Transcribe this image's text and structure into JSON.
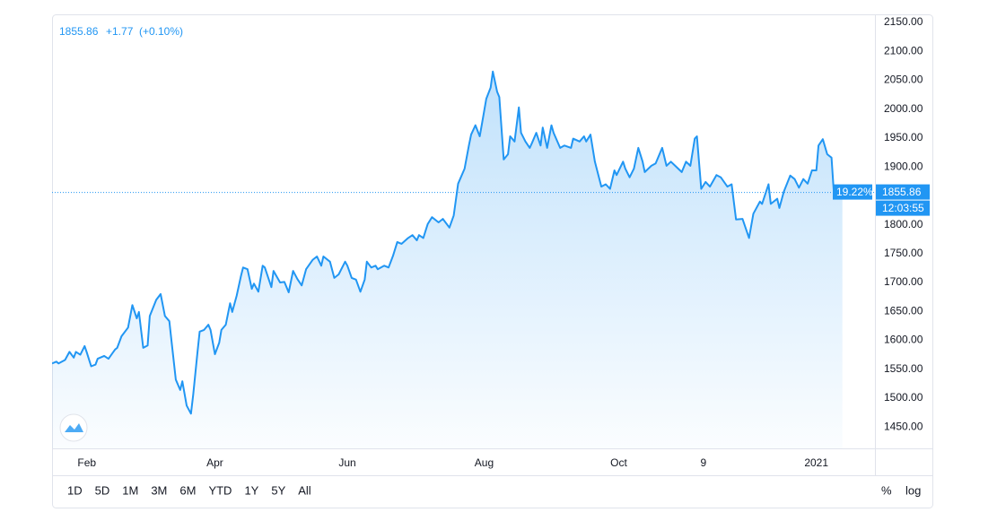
{
  "chart_data": {
    "type": "area",
    "header": {
      "price": "1855.86",
      "change": "+1.77",
      "change_pct": "(+0.10%)"
    },
    "price_label": {
      "percent": "19.22%",
      "countdown": "12:03:55"
    },
    "color": "#2196f3",
    "x": [
      15,
      17,
      18,
      21,
      23,
      25,
      26,
      28,
      30,
      31,
      33,
      35,
      36,
      39,
      41,
      44,
      45,
      47,
      50,
      52,
      54,
      55,
      57,
      59,
      60,
      63,
      65,
      67,
      69,
      70,
      72,
      74,
      75,
      77,
      79,
      80,
      82,
      83,
      85,
      87,
      88,
      90,
      92,
      93,
      95,
      97,
      98,
      100,
      102,
      103,
      105,
      107,
      108,
      110,
      112,
      113,
      116,
      117,
      120,
      122,
      124,
      126,
      128,
      130,
      132,
      135,
      137,
      139,
      140,
      143,
      145,
      147,
      150,
      151,
      153,
      155,
      157,
      159,
      160,
      162,
      164,
      165,
      168,
      170,
      172,
      174,
      176,
      179,
      181,
      183,
      184,
      186,
      188,
      190,
      193,
      195,
      198,
      200,
      202,
      205,
      207,
      208,
      210,
      212,
      213,
      215,
      217,
      218,
      220,
      221,
      223,
      225,
      226,
      228,
      230,
      231,
      233,
      235,
      236,
      238,
      240,
      241,
      243,
      245,
      246,
      249,
      251,
      254,
      255,
      258,
      260,
      261,
      263,
      265,
      268,
      270,
      272,
      274,
      275,
      278,
      279,
      281,
      283,
      285,
      287,
      288,
      291,
      293,
      296,
      298,
      300,
      302,
      305,
      307,
      309,
      311,
      312,
      314,
      316,
      318,
      321,
      323,
      326,
      328,
      330,
      333,
      336,
      338,
      341,
      342,
      345,
      346,
      349,
      350,
      352,
      355,
      357,
      359,
      361,
      363,
      365,
      367,
      368,
      370,
      372,
      374,
      375,
      377,
      379
    ],
    "values": [
      1560,
      1563,
      1560,
      1566,
      1580,
      1570,
      1580,
      1575,
      1590,
      1579,
      1555,
      1558,
      1568,
      1573,
      1568,
      1584,
      1587,
      1607,
      1622,
      1661,
      1638,
      1649,
      1587,
      1591,
      1642,
      1670,
      1680,
      1642,
      1633,
      1599,
      1532,
      1514,
      1529,
      1487,
      1473,
      1506,
      1580,
      1615,
      1618,
      1627,
      1618,
      1576,
      1596,
      1618,
      1627,
      1664,
      1649,
      1677,
      1711,
      1726,
      1723,
      1689,
      1698,
      1684,
      1729,
      1726,
      1692,
      1720,
      1700,
      1701,
      1683,
      1720,
      1706,
      1695,
      1723,
      1739,
      1745,
      1729,
      1745,
      1736,
      1708,
      1714,
      1736,
      1729,
      1708,
      1705,
      1684,
      1705,
      1736,
      1726,
      1729,
      1723,
      1729,
      1726,
      1746,
      1770,
      1767,
      1777,
      1782,
      1773,
      1782,
      1777,
      1801,
      1813,
      1804,
      1810,
      1795,
      1816,
      1871,
      1897,
      1937,
      1956,
      1972,
      1953,
      1975,
      2018,
      2037,
      2065,
      2030,
      2021,
      1913,
      1922,
      1953,
      1944,
      2003,
      1959,
      1944,
      1933,
      1941,
      1959,
      1937,
      1968,
      1933,
      1972,
      1959,
      1933,
      1937,
      1933,
      1949,
      1944,
      1953,
      1944,
      1956,
      1909,
      1866,
      1870,
      1862,
      1894,
      1886,
      1909,
      1897,
      1882,
      1897,
      1933,
      1909,
      1891,
      1902,
      1906,
      1933,
      1902,
      1909,
      1902,
      1891,
      1909,
      1902,
      1949,
      1953,
      1862,
      1874,
      1866,
      1886,
      1882,
      1866,
      1870,
      1809,
      1810,
      1777,
      1819,
      1840,
      1836,
      1870,
      1836,
      1845,
      1829,
      1857,
      1885,
      1879,
      1864,
      1879,
      1871,
      1894,
      1894,
      1937,
      1948,
      1922,
      1916,
      1860,
      1864,
      1855.86
    ],
    "xlim": [
      15,
      394
    ],
    "xticks": [
      {
        "value": 31,
        "label": "Feb"
      },
      {
        "value": 90,
        "label": "Apr"
      },
      {
        "value": 151,
        "label": "Jun"
      },
      {
        "value": 214,
        "label": "Aug"
      },
      {
        "value": 276,
        "label": "Oct"
      },
      {
        "value": 315,
        "label": "9"
      },
      {
        "value": 367,
        "label": "2021"
      }
    ],
    "ylim": [
      1413,
      2164
    ],
    "yticks": [
      {
        "value": 1450,
        "label": "1450.00"
      },
      {
        "value": 1500,
        "label": "1500.00"
      },
      {
        "value": 1550,
        "label": "1550.00"
      },
      {
        "value": 1600,
        "label": "1600.00"
      },
      {
        "value": 1650,
        "label": "1650.00"
      },
      {
        "value": 1700,
        "label": "1700.00"
      },
      {
        "value": 1750,
        "label": "1750.00"
      },
      {
        "value": 1800,
        "label": "1800.00"
      },
      {
        "value": 1850,
        "label": "1850.00"
      },
      {
        "value": 1900,
        "label": "1900.00"
      },
      {
        "value": 1950,
        "label": "1950.00"
      },
      {
        "value": 2000,
        "label": "2000.00"
      },
      {
        "value": 2050,
        "label": "2050.00"
      },
      {
        "value": 2100,
        "label": "2100.00"
      },
      {
        "value": 2150,
        "label": "2150.00"
      }
    ],
    "grid": false
  },
  "toolbar": {
    "ranges": [
      "1D",
      "5D",
      "1M",
      "3M",
      "6M",
      "YTD",
      "1Y",
      "5Y",
      "All"
    ],
    "percent": "%",
    "log": "log"
  }
}
